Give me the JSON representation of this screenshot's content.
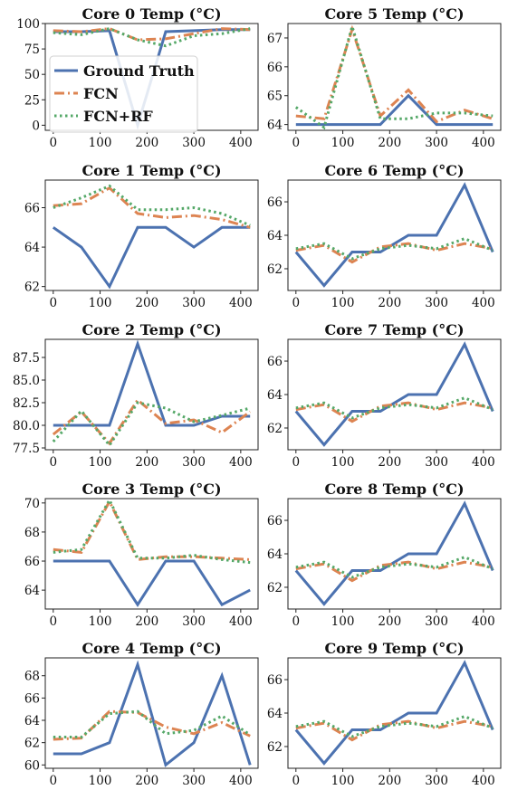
{
  "colors": {
    "Ground Truth": "#4c72b0",
    "FCN": "#dd8452",
    "FCN+RF": "#55a868"
  },
  "legend": {
    "placement": "upper-left of first panel",
    "entries": [
      "Ground Truth",
      "FCN",
      "FCN+RF"
    ]
  },
  "chart_data": [
    {
      "type": "line",
      "title": "Core 0 Temp (°C)",
      "x": [
        0,
        60,
        120,
        180,
        240,
        300,
        360,
        420
      ],
      "xticks": [
        0,
        100,
        200,
        300,
        400
      ],
      "yticks": [
        0,
        25,
        50,
        75,
        100
      ],
      "ytick_labels": [
        "0",
        "25",
        "50",
        "75",
        "100"
      ],
      "xlim": [
        -17,
        437
      ],
      "ylim": [
        -5,
        100
      ],
      "series": [
        {
          "name": "Ground Truth",
          "style": "solid",
          "values": [
            92,
            92,
            93,
            0,
            92,
            93,
            94,
            94
          ]
        },
        {
          "name": "FCN",
          "style": "dashdot",
          "values": [
            93,
            92,
            95,
            84,
            85,
            90,
            95,
            94
          ]
        },
        {
          "name": "FCN+RF",
          "style": "dotted",
          "values": [
            91,
            89,
            95,
            84,
            78,
            88,
            90,
            95
          ]
        }
      ]
    },
    {
      "type": "line",
      "title": "Core 5 Temp (°C)",
      "x": [
        0,
        60,
        120,
        180,
        240,
        300,
        360,
        420
      ],
      "xticks": [
        0,
        100,
        200,
        300,
        400
      ],
      "yticks": [
        64,
        65,
        66,
        67
      ],
      "ytick_labels": [
        "64",
        "65",
        "66",
        "67"
      ],
      "xlim": [
        -17,
        437
      ],
      "ylim": [
        63.8,
        67.5
      ],
      "series": [
        {
          "name": "Ground Truth",
          "style": "solid",
          "values": [
            64,
            64,
            64,
            64,
            65,
            64,
            64,
            64
          ]
        },
        {
          "name": "FCN",
          "style": "dashdot",
          "values": [
            64.3,
            64.2,
            67.3,
            64.3,
            65.2,
            64.1,
            64.5,
            64.2
          ]
        },
        {
          "name": "FCN+RF",
          "style": "dotted",
          "values": [
            64.6,
            63.9,
            67.4,
            64.2,
            64.2,
            64.4,
            64.4,
            64.3
          ]
        }
      ]
    },
    {
      "type": "line",
      "title": "Core 1 Temp (°C)",
      "x": [
        0,
        60,
        120,
        180,
        240,
        300,
        360,
        420
      ],
      "xticks": [
        0,
        100,
        200,
        300,
        400
      ],
      "yticks": [
        62,
        64,
        66
      ],
      "ytick_labels": [
        "62",
        "64",
        "66"
      ],
      "xlim": [
        -17,
        437
      ],
      "ylim": [
        61.8,
        67.4
      ],
      "series": [
        {
          "name": "Ground Truth",
          "style": "solid",
          "values": [
            65,
            64,
            62,
            65,
            65,
            64,
            65,
            65
          ]
        },
        {
          "name": "FCN",
          "style": "dashdot",
          "values": [
            66.1,
            66.2,
            67.0,
            65.7,
            65.5,
            65.6,
            65.4,
            65.0
          ]
        },
        {
          "name": "FCN+RF",
          "style": "dotted",
          "values": [
            66.0,
            66.5,
            67.1,
            65.9,
            65.9,
            66.0,
            65.7,
            65.1
          ]
        }
      ]
    },
    {
      "type": "line",
      "title": "Core 6 Temp (°C)",
      "x": [
        0,
        60,
        120,
        180,
        240,
        300,
        360,
        420
      ],
      "xticks": [
        0,
        100,
        200,
        300,
        400
      ],
      "yticks": [
        62,
        64,
        66
      ],
      "ytick_labels": [
        "62",
        "64",
        "66"
      ],
      "xlim": [
        -17,
        437
      ],
      "ylim": [
        60.7,
        67.3
      ],
      "series": [
        {
          "name": "Ground Truth",
          "style": "solid",
          "values": [
            63,
            61,
            63,
            63,
            64,
            64,
            67,
            63
          ]
        },
        {
          "name": "FCN",
          "style": "dashdot",
          "values": [
            63.1,
            63.4,
            62.4,
            63.3,
            63.5,
            63.1,
            63.5,
            63.2
          ]
        },
        {
          "name": "FCN+RF",
          "style": "dotted",
          "values": [
            63.2,
            63.5,
            62.6,
            63.2,
            63.4,
            63.2,
            63.8,
            63.1
          ]
        }
      ]
    },
    {
      "type": "line",
      "title": "Core 2 Temp (°C)",
      "x": [
        0,
        60,
        120,
        180,
        240,
        300,
        360,
        420
      ],
      "xticks": [
        0,
        100,
        200,
        300,
        400
      ],
      "yticks": [
        77.5,
        80,
        82.5,
        85,
        87.5
      ],
      "ytick_labels": [
        "77.5",
        "80.0",
        "82.5",
        "85.0",
        "87.5"
      ],
      "xlim": [
        -17,
        437
      ],
      "ylim": [
        77.3,
        89.5
      ],
      "series": [
        {
          "name": "Ground Truth",
          "style": "solid",
          "values": [
            80,
            80,
            80,
            89,
            80,
            80,
            81,
            81
          ]
        },
        {
          "name": "FCN",
          "style": "dashdot",
          "values": [
            79,
            81.5,
            78,
            82.8,
            80.2,
            80.6,
            79.2,
            81.5
          ]
        },
        {
          "name": "FCN+RF",
          "style": "dotted",
          "values": [
            78.2,
            81.6,
            77.8,
            82.5,
            81.9,
            80.4,
            81.1,
            81.9
          ]
        }
      ]
    },
    {
      "type": "line",
      "title": "Core 7 Temp (°C)",
      "x": [
        0,
        60,
        120,
        180,
        240,
        300,
        360,
        420
      ],
      "xticks": [
        0,
        100,
        200,
        300,
        400
      ],
      "yticks": [
        62,
        64,
        66
      ],
      "ytick_labels": [
        "62",
        "64",
        "66"
      ],
      "xlim": [
        -17,
        437
      ],
      "ylim": [
        60.7,
        67.3
      ],
      "series": [
        {
          "name": "Ground Truth",
          "style": "solid",
          "values": [
            63,
            61,
            63,
            63,
            64,
            64,
            67,
            63
          ]
        },
        {
          "name": "FCN",
          "style": "dashdot",
          "values": [
            63.1,
            63.4,
            62.4,
            63.3,
            63.5,
            63.1,
            63.5,
            63.2
          ]
        },
        {
          "name": "FCN+RF",
          "style": "dotted",
          "values": [
            63.2,
            63.5,
            62.6,
            63.2,
            63.4,
            63.2,
            63.8,
            63.1
          ]
        }
      ]
    },
    {
      "type": "line",
      "title": "Core 3 Temp (°C)",
      "x": [
        0,
        60,
        120,
        180,
        240,
        300,
        360,
        420
      ],
      "xticks": [
        0,
        100,
        200,
        300,
        400
      ],
      "yticks": [
        64,
        66,
        68,
        70
      ],
      "ytick_labels": [
        "64",
        "66",
        "68",
        "70"
      ],
      "xlim": [
        -17,
        437
      ],
      "ylim": [
        62.7,
        70.3
      ],
      "series": [
        {
          "name": "Ground Truth",
          "style": "solid",
          "values": [
            66,
            66,
            66,
            63,
            66,
            66,
            63,
            64
          ]
        },
        {
          "name": "FCN",
          "style": "dashdot",
          "values": [
            66.8,
            66.6,
            70.1,
            66.1,
            66.3,
            66.3,
            66.2,
            66.1
          ]
        },
        {
          "name": "FCN+RF",
          "style": "dotted",
          "values": [
            66.6,
            66.8,
            70.2,
            66.2,
            66.2,
            66.4,
            66.1,
            65.9
          ]
        }
      ]
    },
    {
      "type": "line",
      "title": "Core 8 Temp (°C)",
      "x": [
        0,
        60,
        120,
        180,
        240,
        300,
        360,
        420
      ],
      "xticks": [
        0,
        100,
        200,
        300,
        400
      ],
      "yticks": [
        62,
        64,
        66
      ],
      "ytick_labels": [
        "62",
        "64",
        "66"
      ],
      "xlim": [
        -17,
        437
      ],
      "ylim": [
        60.7,
        67.3
      ],
      "series": [
        {
          "name": "Ground Truth",
          "style": "solid",
          "values": [
            63,
            61,
            63,
            63,
            64,
            64,
            67,
            63
          ]
        },
        {
          "name": "FCN",
          "style": "dashdot",
          "values": [
            63.1,
            63.4,
            62.4,
            63.3,
            63.5,
            63.1,
            63.5,
            63.2
          ]
        },
        {
          "name": "FCN+RF",
          "style": "dotted",
          "values": [
            63.2,
            63.5,
            62.6,
            63.2,
            63.4,
            63.2,
            63.8,
            63.1
          ]
        }
      ]
    },
    {
      "type": "line",
      "title": "Core 4 Temp (°C)",
      "x": [
        0,
        60,
        120,
        180,
        240,
        300,
        360,
        420
      ],
      "xticks": [
        0,
        100,
        200,
        300,
        400
      ],
      "yticks": [
        60,
        62,
        64,
        66,
        68
      ],
      "ytick_labels": [
        "60",
        "62",
        "64",
        "66",
        "68"
      ],
      "xlim": [
        -17,
        437
      ],
      "ylim": [
        59.7,
        69.6
      ],
      "series": [
        {
          "name": "Ground Truth",
          "style": "solid",
          "values": [
            61,
            61,
            62,
            69,
            60,
            62,
            68,
            60
          ]
        },
        {
          "name": "FCN",
          "style": "dashdot",
          "values": [
            62.3,
            62.4,
            64.8,
            64.7,
            63.4,
            62.8,
            63.8,
            62.6
          ]
        },
        {
          "name": "FCN+RF",
          "style": "dotted",
          "values": [
            62.5,
            62.5,
            64.6,
            64.8,
            62.8,
            63.1,
            64.4,
            62.7
          ]
        }
      ]
    },
    {
      "type": "line",
      "title": "Core 9 Temp (°C)",
      "x": [
        0,
        60,
        120,
        180,
        240,
        300,
        360,
        420
      ],
      "xticks": [
        0,
        100,
        200,
        300,
        400
      ],
      "yticks": [
        62,
        64,
        66
      ],
      "ytick_labels": [
        "62",
        "64",
        "66"
      ],
      "xlim": [
        -17,
        437
      ],
      "ylim": [
        60.7,
        67.3
      ],
      "series": [
        {
          "name": "Ground Truth",
          "style": "solid",
          "values": [
            63,
            61,
            63,
            63,
            64,
            64,
            67,
            63
          ]
        },
        {
          "name": "FCN",
          "style": "dashdot",
          "values": [
            63.1,
            63.4,
            62.4,
            63.3,
            63.5,
            63.1,
            63.5,
            63.2
          ]
        },
        {
          "name": "FCN+RF",
          "style": "dotted",
          "values": [
            63.2,
            63.5,
            62.6,
            63.2,
            63.4,
            63.2,
            63.8,
            63.1
          ]
        }
      ]
    }
  ]
}
